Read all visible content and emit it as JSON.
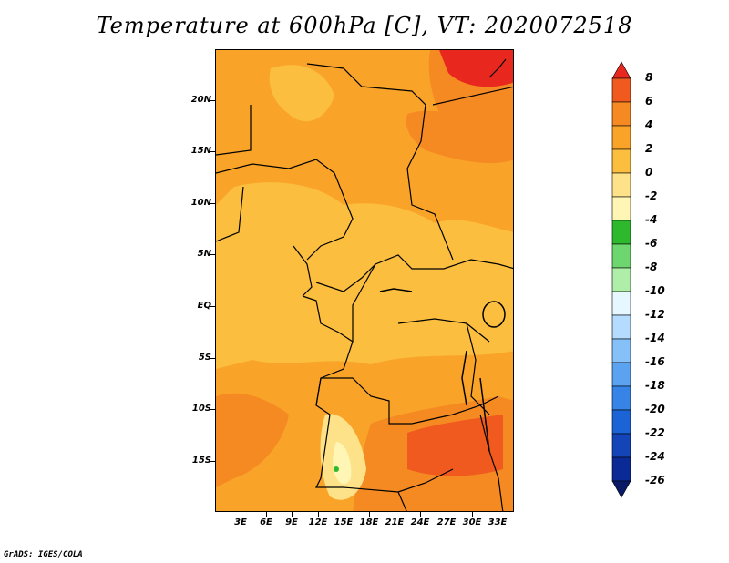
{
  "title": "Temperature at 600hPa [C], VT: 2020072518",
  "credit": "GrADS: IGES/COLA",
  "lat_ticks": [
    {
      "label": "20N",
      "value": 20
    },
    {
      "label": "15N",
      "value": 15
    },
    {
      "label": "10N",
      "value": 10
    },
    {
      "label": "5N",
      "value": 5
    },
    {
      "label": "EQ",
      "value": 0
    },
    {
      "label": "5S",
      "value": -5
    },
    {
      "label": "10S",
      "value": -10
    },
    {
      "label": "15S",
      "value": -15
    }
  ],
  "lon_ticks": [
    {
      "label": "3E",
      "value": 3
    },
    {
      "label": "6E",
      "value": 6
    },
    {
      "label": "9E",
      "value": 9
    },
    {
      "label": "12E",
      "value": 12
    },
    {
      "label": "15E",
      "value": 15
    },
    {
      "label": "18E",
      "value": 18
    },
    {
      "label": "21E",
      "value": 21
    },
    {
      "label": "24E",
      "value": 24
    },
    {
      "label": "27E",
      "value": 27
    },
    {
      "label": "30E",
      "value": 30
    },
    {
      "label": "33E",
      "value": 33
    }
  ],
  "colorbar": {
    "labels": [
      "8",
      "6",
      "4",
      "2",
      "0",
      "-2",
      "-4",
      "-6",
      "-8",
      "-10",
      "-12",
      "-14",
      "-16",
      "-18",
      "-20",
      "-22",
      "-24",
      "-26"
    ],
    "colors": [
      "#e8281e",
      "#f05a1e",
      "#f58a23",
      "#f9a429",
      "#fbbe3f",
      "#fde28a",
      "#fff6b5",
      "#2eb82e",
      "#6ed66e",
      "#aeeea8",
      "#e6f7ff",
      "#b5dcff",
      "#85c0f9",
      "#5ba3f0",
      "#3684e6",
      "#1c64d6",
      "#1445b8",
      "#0a2a96",
      "#081a66"
    ]
  }
}
